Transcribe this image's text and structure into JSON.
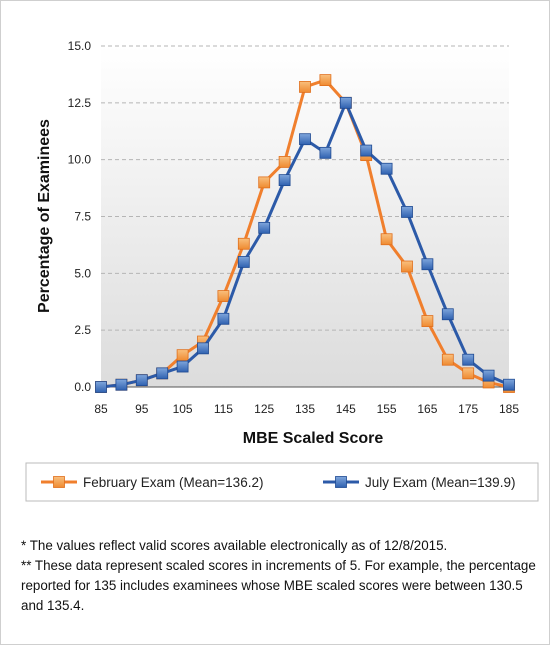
{
  "chart_data": {
    "type": "line",
    "title": "",
    "xlabel": "MBE Scaled Score",
    "ylabel": "Percentage of Examinees",
    "x": [
      85,
      90,
      95,
      100,
      105,
      110,
      115,
      120,
      125,
      130,
      135,
      140,
      145,
      150,
      155,
      160,
      165,
      170,
      175,
      180,
      185
    ],
    "x_tick_labels": [
      "85",
      "95",
      "105",
      "115",
      "125",
      "135",
      "145",
      "155",
      "165",
      "175",
      "185"
    ],
    "xlim": [
      85,
      185
    ],
    "ylim": [
      0,
      15
    ],
    "y_tick_labels": [
      "0.0",
      "2.5",
      "5.0",
      "7.5",
      "10.0",
      "12.5",
      "15.0"
    ],
    "grid": "horizontal dashed",
    "legend_position": "bottom",
    "series": [
      {
        "name": "February Exam (Mean=136.2)",
        "color": "#f07f2d",
        "marker_color": "#f5a04f",
        "values": [
          0.0,
          0.1,
          0.3,
          0.6,
          1.4,
          2.0,
          4.0,
          6.3,
          9.0,
          9.9,
          13.2,
          13.5,
          12.5,
          10.2,
          6.5,
          5.3,
          2.9,
          1.2,
          0.6,
          0.2,
          0.0
        ]
      },
      {
        "name": "July Exam (Mean=139.9)",
        "color": "#2c5aa8",
        "marker_color": "#4a7cc8",
        "values": [
          0.0,
          0.1,
          0.3,
          0.6,
          0.9,
          1.7,
          3.0,
          5.5,
          7.0,
          9.1,
          10.9,
          10.3,
          12.5,
          10.4,
          9.6,
          7.7,
          5.4,
          3.2,
          1.2,
          0.5,
          0.1
        ]
      }
    ]
  },
  "footnotes": [
    "* The values reflect valid scores available electronically as of 12/8/2015.",
    "** These data represent scaled scores in increments of 5.  For example, the percentage reported for 135 includes examinees whose MBE scaled scores were between 130.5 and 135.4."
  ]
}
